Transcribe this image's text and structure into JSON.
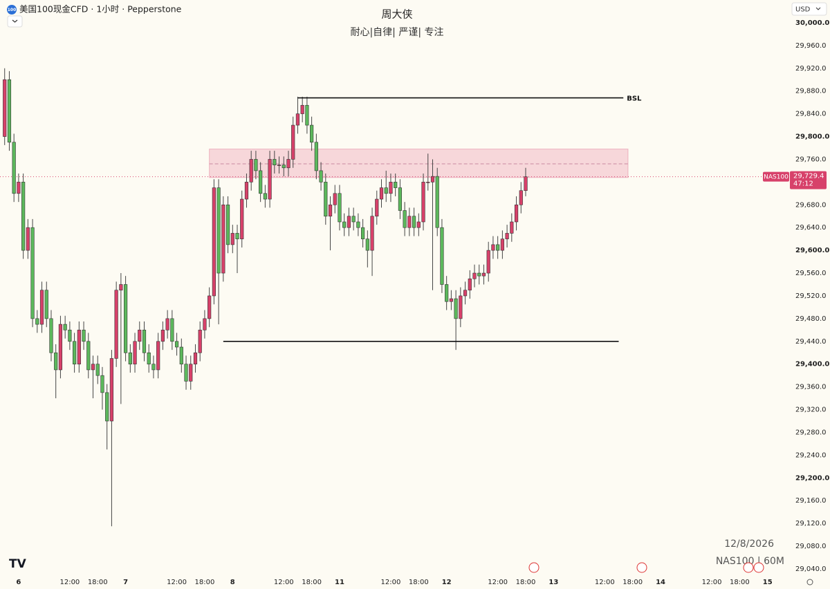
{
  "chart_data": {
    "type": "candlestick",
    "badge": "100",
    "instrument": "美国100现金CFD · 1小时 · Pepperstone",
    "title": "周大侠",
    "subtitle": "耐心|自律| 严谨| 专注",
    "currency": "USD",
    "date_note": "12/8/2026",
    "watermark": "NAS100 | 60M",
    "symbol_tag": "NAS100",
    "countdown": "47:12",
    "last_price": {
      "value": 29729.4,
      "label": "29,729.4"
    },
    "up_color": "#d7416a",
    "down_color": "#5cb85c",
    "grid": false,
    "xlim": [
      -1,
      168.5
    ],
    "ylim": [
      29031.5,
      30040
    ],
    "xticks": [
      {
        "value": 3,
        "label": "6"
      },
      {
        "value": 14,
        "label": "12:00"
      },
      {
        "value": 20,
        "label": "18:00"
      },
      {
        "value": 26,
        "label": "7"
      },
      {
        "value": 37,
        "label": "12:00"
      },
      {
        "value": 43,
        "label": "18:00"
      },
      {
        "value": 49,
        "label": "8"
      },
      {
        "value": 60,
        "label": "12:00"
      },
      {
        "value": 66,
        "label": "18:00"
      },
      {
        "value": 72,
        "label": "11"
      },
      {
        "value": 83,
        "label": "12:00"
      },
      {
        "value": 89,
        "label": "18:00"
      },
      {
        "value": 95,
        "label": "12"
      },
      {
        "value": 106,
        "label": "12:00"
      },
      {
        "value": 112,
        "label": "18:00"
      },
      {
        "value": 118,
        "label": "13"
      },
      {
        "value": 129,
        "label": "12:00"
      },
      {
        "value": 135,
        "label": "18:00"
      },
      {
        "value": 141,
        "label": "14"
      },
      {
        "value": 152,
        "label": "12:00"
      },
      {
        "value": 158,
        "label": "18:00"
      },
      {
        "value": 164,
        "label": "15"
      }
    ],
    "yticks": [
      {
        "value": 30000,
        "label": "30,000.0"
      },
      {
        "value": 29960,
        "label": "29,960.0"
      },
      {
        "value": 29920,
        "label": "29,920.0"
      },
      {
        "value": 29880,
        "label": "29,880.0"
      },
      {
        "value": 29840,
        "label": "29,840.0"
      },
      {
        "value": 29800,
        "label": "29,800.0"
      },
      {
        "value": 29760,
        "label": "29,760.0"
      },
      {
        "value": 29720,
        "label": "29,720.0"
      },
      {
        "value": 29680,
        "label": "29,680.0"
      },
      {
        "value": 29640,
        "label": "29,640.0"
      },
      {
        "value": 29600,
        "label": "29,600.0"
      },
      {
        "value": 29560,
        "label": "29,560.0"
      },
      {
        "value": 29520,
        "label": "29,520.0"
      },
      {
        "value": 29480,
        "label": "29,480.0"
      },
      {
        "value": 29440,
        "label": "29,440.0"
      },
      {
        "value": 29400,
        "label": "29,400.0"
      },
      {
        "value": 29360,
        "label": "29,360.0"
      },
      {
        "value": 29320,
        "label": "29,320.0"
      },
      {
        "value": 29280,
        "label": "29,280.0"
      },
      {
        "value": 29240,
        "label": "29,240.0"
      },
      {
        "value": 29200,
        "label": "29,200.0"
      },
      {
        "value": 29160,
        "label": "29,160.0"
      },
      {
        "value": 29120,
        "label": "29,120.0"
      },
      {
        "value": 29080,
        "label": "29,080.0"
      },
      {
        "value": 29040,
        "label": "29,040.0"
      }
    ],
    "zone": {
      "low": 29728,
      "high": 29778,
      "mid": 29752,
      "start": 44,
      "end": 134
    },
    "levels": [
      {
        "label": "BSL",
        "value": 29868,
        "start": 63,
        "end": 133
      },
      {
        "value": 29440,
        "start": 47,
        "end": 132
      }
    ],
    "series": {
      "open": [
        29800,
        29900,
        29790,
        29700,
        29720,
        29600,
        29640,
        29480,
        29470,
        29530,
        29480,
        29420,
        29390,
        29470,
        29460,
        29440,
        29400,
        29460,
        29440,
        29390,
        29400,
        29380,
        29350,
        29300,
        29410,
        29530,
        29540,
        29420,
        29400,
        29440,
        29460,
        29420,
        29400,
        29390,
        29440,
        29460,
        29480,
        29440,
        29430,
        29400,
        29370,
        29400,
        29420,
        29460,
        29480,
        29520,
        29710,
        29560,
        29680,
        29610,
        29630,
        29620,
        29690,
        29720,
        29760,
        29740,
        29700,
        29690,
        29760,
        29750,
        29750,
        29745,
        29760,
        29820,
        29840,
        29855,
        29820,
        29790,
        29740,
        29720,
        29660,
        29680,
        29700,
        29650,
        29640,
        29660,
        29650,
        29640,
        29620,
        29600,
        29660,
        29690,
        29710,
        29700,
        29720,
        29710,
        29670,
        29640,
        29660,
        29640,
        29650,
        29720,
        29720,
        29730,
        29640,
        29540,
        29510,
        29515,
        29480,
        29520,
        29530,
        29550,
        29560,
        29555,
        29560,
        29600,
        29610,
        29600,
        29620,
        29630,
        29650,
        29680,
        29705
      ],
      "high": [
        29920,
        29915,
        29805,
        29735,
        29735,
        29655,
        29655,
        29495,
        29545,
        29545,
        29495,
        29435,
        29485,
        29485,
        29475,
        29455,
        29475,
        29475,
        29455,
        29415,
        29415,
        29395,
        29365,
        29425,
        29545,
        29560,
        29555,
        29435,
        29455,
        29475,
        29475,
        29435,
        29415,
        29455,
        29475,
        29495,
        29495,
        29455,
        29445,
        29415,
        29415,
        29435,
        29475,
        29495,
        29535,
        29725,
        29725,
        29695,
        29695,
        29645,
        29645,
        29705,
        29735,
        29775,
        29775,
        29755,
        29715,
        29775,
        29775,
        29765,
        29765,
        29775,
        29835,
        29870,
        29870,
        29870,
        29835,
        29805,
        29755,
        29735,
        29695,
        29715,
        29715,
        29665,
        29675,
        29675,
        29665,
        29655,
        29635,
        29675,
        29705,
        29725,
        29740,
        29735,
        29735,
        29725,
        29685,
        29675,
        29675,
        29665,
        29735,
        29770,
        29760,
        29745,
        29655,
        29555,
        29530,
        29530,
        29535,
        29545,
        29565,
        29575,
        29575,
        29575,
        29615,
        29625,
        29625,
        29635,
        29645,
        29665,
        29695,
        29720,
        29745
      ],
      "low": [
        29785,
        29775,
        29685,
        29685,
        29585,
        29585,
        29465,
        29455,
        29455,
        29465,
        29405,
        29340,
        29375,
        29445,
        29425,
        29385,
        29385,
        29425,
        29375,
        29340,
        29365,
        29320,
        29250,
        29115,
        29395,
        29330,
        29405,
        29385,
        29385,
        29425,
        29405,
        29385,
        29375,
        29375,
        29425,
        29445,
        29425,
        29415,
        29385,
        29355,
        29355,
        29385,
        29405,
        29445,
        29465,
        29505,
        29470,
        29545,
        29595,
        29595,
        29560,
        29605,
        29675,
        29705,
        29725,
        29685,
        29675,
        29675,
        29735,
        29735,
        29730,
        29730,
        29745,
        29805,
        29825,
        29805,
        29775,
        29725,
        29705,
        29645,
        29600,
        29665,
        29635,
        29625,
        29625,
        29635,
        29625,
        29605,
        29570,
        29555,
        29645,
        29675,
        29685,
        29685,
        29695,
        29655,
        29625,
        29625,
        29625,
        29625,
        29635,
        29705,
        29530,
        29625,
        29525,
        29495,
        29495,
        29425,
        29465,
        29505,
        29515,
        29535,
        29540,
        29540,
        29545,
        29585,
        29585,
        29585,
        29605,
        29615,
        29635,
        29665,
        29695
      ],
      "close": [
        29900,
        29790,
        29700,
        29720,
        29600,
        29640,
        29480,
        29470,
        29530,
        29480,
        29420,
        29390,
        29470,
        29460,
        29440,
        29400,
        29460,
        29440,
        29390,
        29400,
        29380,
        29350,
        29300,
        29410,
        29530,
        29540,
        29420,
        29400,
        29440,
        29460,
        29420,
        29400,
        29390,
        29440,
        29460,
        29480,
        29440,
        29430,
        29400,
        29370,
        29400,
        29420,
        29460,
        29480,
        29520,
        29710,
        29560,
        29680,
        29610,
        29630,
        29620,
        29690,
        29720,
        29760,
        29740,
        29700,
        29690,
        29760,
        29750,
        29750,
        29745,
        29760,
        29820,
        29840,
        29855,
        29820,
        29790,
        29740,
        29720,
        29660,
        29680,
        29700,
        29650,
        29640,
        29660,
        29650,
        29640,
        29620,
        29600,
        29660,
        29690,
        29710,
        29700,
        29720,
        29710,
        29670,
        29640,
        29660,
        29640,
        29650,
        29720,
        29720,
        29730,
        29640,
        29540,
        29510,
        29515,
        29480,
        29520,
        29530,
        29550,
        29560,
        29555,
        29560,
        29600,
        29610,
        29600,
        29620,
        29630,
        29650,
        29680,
        29705,
        29729.4
      ]
    }
  }
}
